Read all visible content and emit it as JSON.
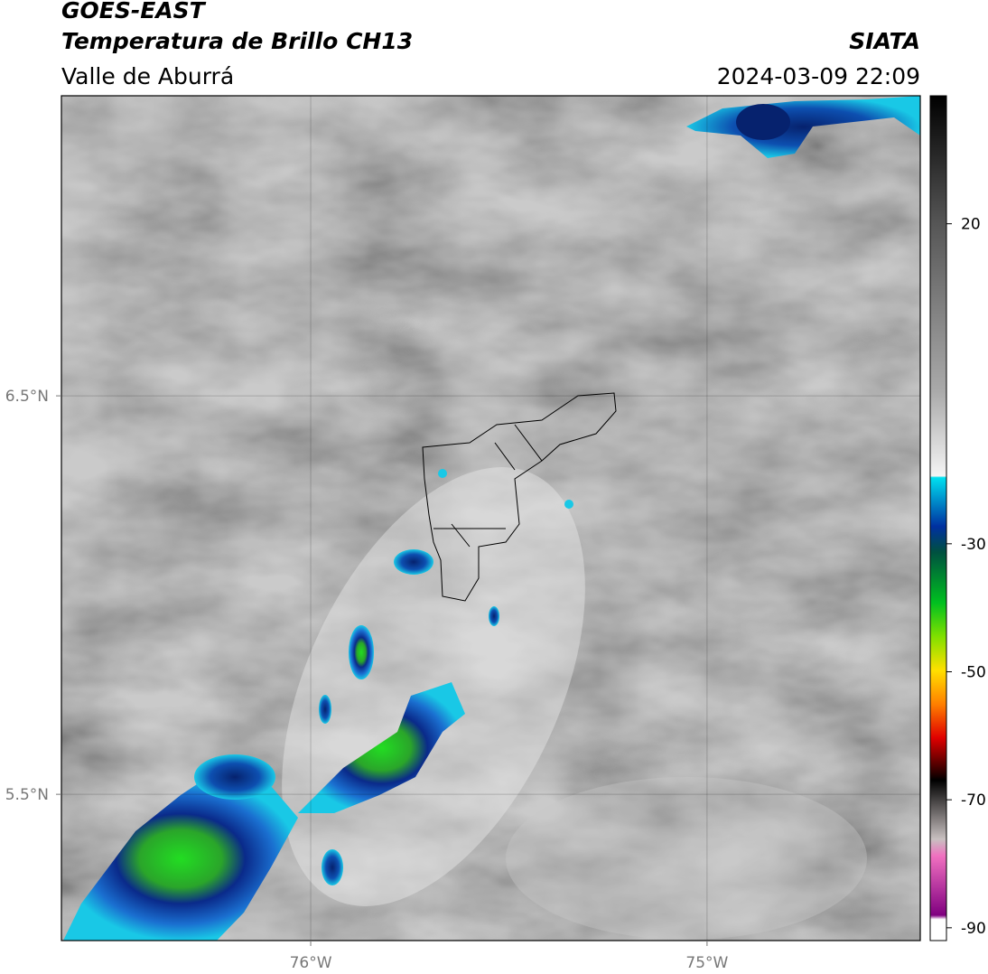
{
  "header": {
    "title": "GOES-EAST",
    "subtitle": "Temperatura de Brillo CH13",
    "region": "Valle de Aburrá",
    "source": "SIATA",
    "datetime": "2024-03-09 22:09"
  },
  "map": {
    "lonlim": [
      -76.629,
      -74.462
    ],
    "latlim": [
      5.133,
      7.253
    ],
    "lon_ticks": [
      {
        "value": -76,
        "label": "76°W"
      },
      {
        "value": -75,
        "label": "75°W"
      }
    ],
    "lat_ticks": [
      {
        "value": 6.5,
        "label": "6.5°N"
      },
      {
        "value": 5.5,
        "label": "5.5°N"
      }
    ]
  },
  "colorbar": {
    "lim": [
      -92,
      40
    ],
    "ticks": [
      20,
      -30,
      -50,
      -70,
      -90
    ]
  }
}
